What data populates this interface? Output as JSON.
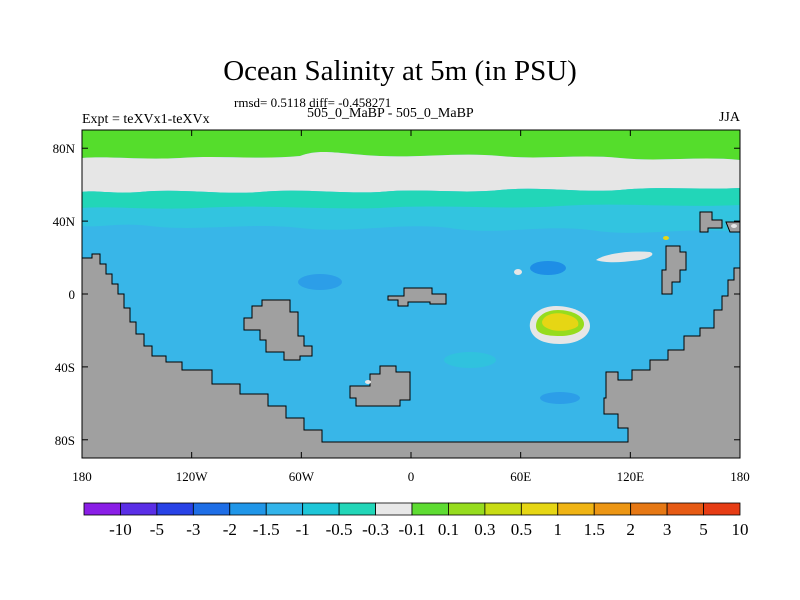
{
  "title": "Ocean Salinity at 5m (in PSU)",
  "stats": "rmsd= 0.5118  diff= -0.458271",
  "experiment_label": "Expt = teXVx1-teXVx",
  "experiment_name": "505_0_MaBP - 505_0_MaBP",
  "season": "JJA",
  "map": {
    "lon_range": [
      -180,
      180
    ],
    "lat_range": [
      -90,
      90
    ],
    "x_ticks": [
      {
        "lon": -180,
        "label": "180"
      },
      {
        "lon": -120,
        "label": "120W"
      },
      {
        "lon": -60,
        "label": "60W"
      },
      {
        "lon": 0,
        "label": "0"
      },
      {
        "lon": 60,
        "label": "60E"
      },
      {
        "lon": 120,
        "label": "120E"
      },
      {
        "lon": 180,
        "label": "180"
      }
    ],
    "y_ticks": [
      {
        "lat": 80,
        "label": "80N"
      },
      {
        "lat": 40,
        "label": "40N"
      },
      {
        "lat": 0,
        "label": "0"
      },
      {
        "lat": -40,
        "label": "40S"
      },
      {
        "lat": -80,
        "label": "80S"
      }
    ],
    "colors": {
      "land": "#a0a0a0",
      "ocean_base": "#38b6e8",
      "arctic_band": "#55dd2c",
      "neutral_band": "#e6e6e6"
    }
  },
  "colorbar": {
    "colors": [
      "#8a1ee6",
      "#5a2ee6",
      "#2842e6",
      "#1e6ee6",
      "#2096e8",
      "#32b4ea",
      "#1ec6d8",
      "#22d6b8",
      "#e8e8e8",
      "#5edc32",
      "#96dc1e",
      "#c8dc14",
      "#e6d614",
      "#f0b414",
      "#ec9614",
      "#e67814",
      "#e65a14",
      "#e63c14"
    ],
    "labels": [
      "-10",
      "-5",
      "-3",
      "-2",
      "-1.5",
      "-1",
      "-0.5",
      "-0.3",
      "-0.1",
      "0.1",
      "0.3",
      "0.5",
      "1",
      "1.5",
      "2",
      "3",
      "5",
      "10"
    ]
  }
}
